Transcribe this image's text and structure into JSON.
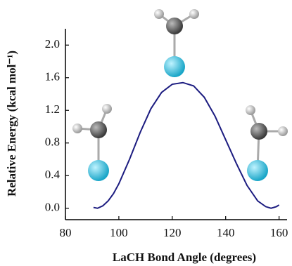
{
  "chart_data": {
    "type": "line",
    "x_label": "LaCH Bond Angle (degrees)",
    "y_label": "Relative Energy (kcal mol⁻¹)",
    "x": [
      90.5,
      92,
      94,
      96,
      98,
      100,
      104,
      108,
      112,
      116,
      120,
      124,
      128,
      132,
      136,
      140,
      144,
      148,
      152,
      155,
      157,
      159,
      160
    ],
    "series": [
      {
        "color": "#1c1c80",
        "values": [
          0.01,
          0.0,
          0.03,
          0.09,
          0.18,
          0.3,
          0.6,
          0.93,
          1.22,
          1.42,
          1.52,
          1.54,
          1.5,
          1.36,
          1.13,
          0.84,
          0.55,
          0.28,
          0.09,
          0.02,
          0.0,
          0.02,
          0.04
        ]
      }
    ],
    "xlim": [
      80,
      163
    ],
    "ylim": [
      -0.14,
      2.2
    ],
    "xticks": [
      80,
      100,
      120,
      140,
      160
    ],
    "yticks": [
      {
        "value": 0,
        "label": "0.0"
      },
      {
        "value": 0.4,
        "label": "0.4"
      },
      {
        "value": 0.8,
        "label": "0.8"
      },
      {
        "value": 1.2,
        "label": "1.2"
      },
      {
        "value": 1.6,
        "label": "1.6"
      },
      {
        "value": 2,
        "label": "2.0"
      }
    ]
  }
}
